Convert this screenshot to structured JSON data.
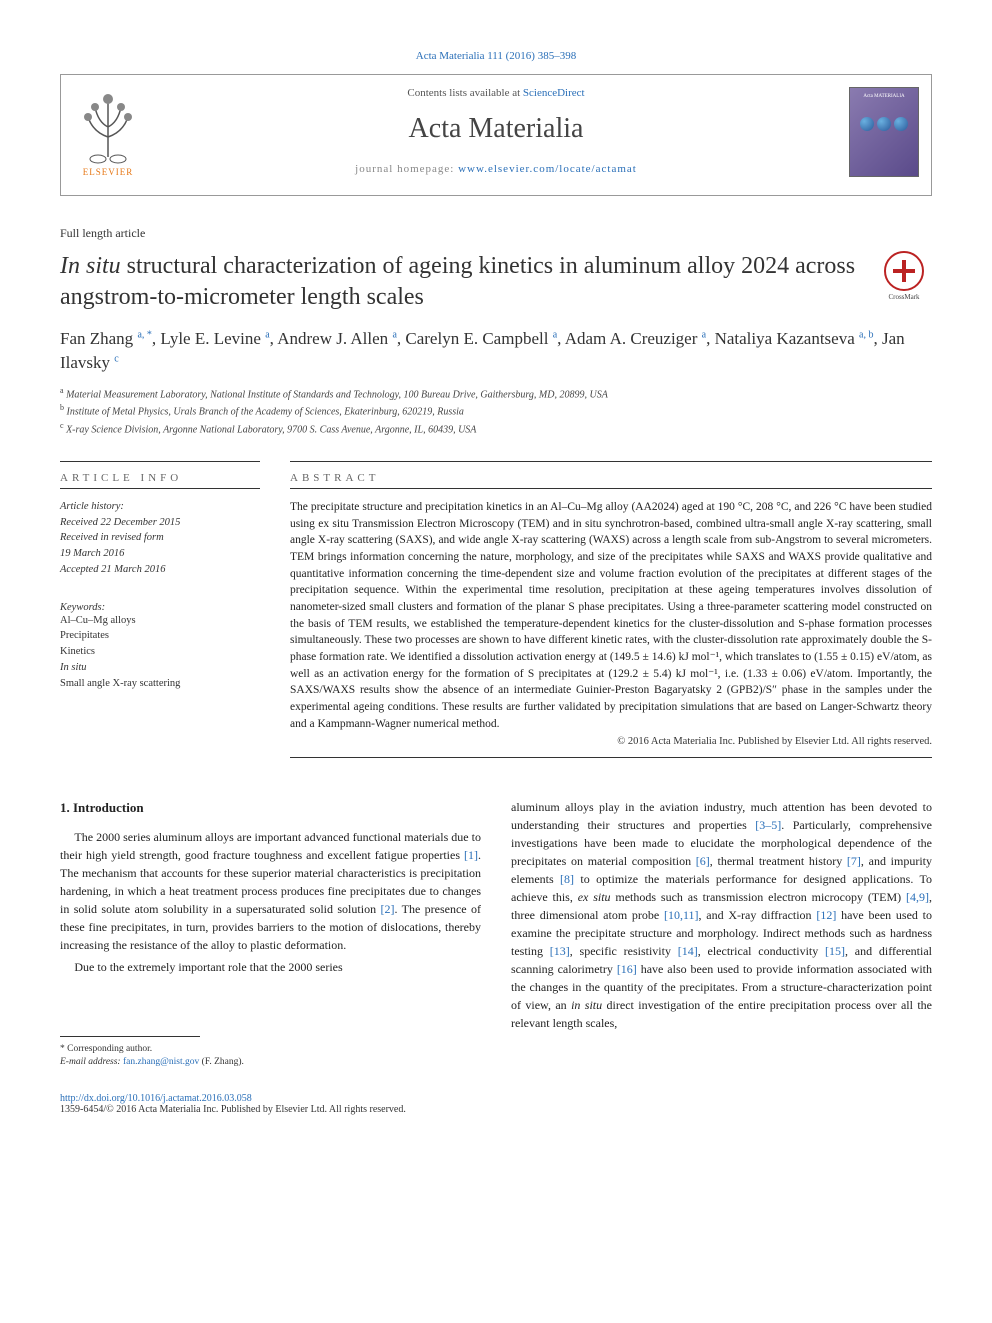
{
  "citation": "Acta Materialia 111 (2016) 385–398",
  "header": {
    "contents_prefix": "Contents lists available at ",
    "contents_link": "ScienceDirect",
    "journal_name": "Acta Materialia",
    "homepage_prefix": "journal homepage: ",
    "homepage_url": "www.elsevier.com/locate/actamat",
    "elsevier_label": "ELSEVIER",
    "cover_title": "Acta MATERIALIA"
  },
  "article_type": "Full length article",
  "title_prefix_italic": "In situ",
  "title_rest": " structural characterization of ageing kinetics in aluminum alloy 2024 across angstrom-to-micrometer length scales",
  "crossmark_label": "CrossMark",
  "authors_html": "Fan Zhang <sup>a, *</sup>, Lyle E. Levine <sup>a</sup>, Andrew J. Allen <sup>a</sup>, Carelyn E. Campbell <sup>a</sup>, Adam A. Creuziger <sup>a</sup>, Nataliya Kazantseva <sup>a, b</sup>, Jan Ilavsky <sup>c</sup>",
  "affiliations": [
    {
      "sup": "a",
      "text": "Material Measurement Laboratory, National Institute of Standards and Technology, 100 Bureau Drive, Gaithersburg, MD, 20899, USA"
    },
    {
      "sup": "b",
      "text": "Institute of Metal Physics, Urals Branch of the Academy of Sciences, Ekaterinburg, 620219, Russia"
    },
    {
      "sup": "c",
      "text": "X-ray Science Division, Argonne National Laboratory, 9700 S. Cass Avenue, Argonne, IL, 60439, USA"
    }
  ],
  "info": {
    "section_label": "ARTICLE INFO",
    "history_label": "Article history:",
    "history": [
      "Received 22 December 2015",
      "Received in revised form",
      "19 March 2016",
      "Accepted 21 March 2016"
    ],
    "keywords_label": "Keywords:",
    "keywords": [
      "Al–Cu–Mg alloys",
      "Precipitates",
      "Kinetics",
      "In situ",
      "Small angle X-ray scattering"
    ]
  },
  "abstract": {
    "section_label": "ABSTRACT",
    "text": "The precipitate structure and precipitation kinetics in an Al–Cu–Mg alloy (AA2024) aged at 190 °C, 208 °C, and 226 °C have been studied using ex situ Transmission Electron Microscopy (TEM) and in situ synchrotron-based, combined ultra-small angle X-ray scattering, small angle X-ray scattering (SAXS), and wide angle X-ray scattering (WAXS) across a length scale from sub-Angstrom to several micrometers. TEM brings information concerning the nature, morphology, and size of the precipitates while SAXS and WAXS provide qualitative and quantitative information concerning the time-dependent size and volume fraction evolution of the precipitates at different stages of the precipitation sequence. Within the experimental time resolution, precipitation at these ageing temperatures involves dissolution of nanometer-sized small clusters and formation of the planar S phase precipitates. Using a three-parameter scattering model constructed on the basis of TEM results, we established the temperature-dependent kinetics for the cluster-dissolution and S-phase formation processes simultaneously. These two processes are shown to have different kinetic rates, with the cluster-dissolution rate approximately double the S-phase formation rate. We identified a dissolution activation energy at (149.5 ± 14.6) kJ mol⁻¹, which translates to (1.55 ± 0.15) eV/atom, as well as an activation energy for the formation of S precipitates at (129.2 ± 5.4) kJ mol⁻¹, i.e. (1.33 ± 0.06) eV/atom. Importantly, the SAXS/WAXS results show the absence of an intermediate Guinier-Preston Bagaryatsky 2 (GPB2)/S″ phase in the samples under the experimental ageing conditions. These results are further validated by precipitation simulations that are based on Langer-Schwartz theory and a Kampmann-Wagner numerical method.",
    "copyright": "© 2016 Acta Materialia Inc. Published by Elsevier Ltd. All rights reserved."
  },
  "body": {
    "section_heading": "1. Introduction",
    "col1_p1": "The 2000 series aluminum alloys are important advanced functional materials due to their high yield strength, good fracture toughness and excellent fatigue properties [1]. The mechanism that accounts for these superior material characteristics is precipitation hardening, in which a heat treatment process produces fine precipitates due to changes in solid solute atom solubility in a supersaturated solid solution [2]. The presence of these fine precipitates, in turn, provides barriers to the motion of dislocations, thereby increasing the resistance of the alloy to plastic deformation.",
    "col1_p2": "Due to the extremely important role that the 2000 series",
    "col2_p1": "aluminum alloys play in the aviation industry, much attention has been devoted to understanding their structures and properties [3–5]. Particularly, comprehensive investigations have been made to elucidate the morphological dependence of the precipitates on material composition [6], thermal treatment history [7], and impurity elements [8] to optimize the materials performance for designed applications. To achieve this, ex situ methods such as transmission electron microcopy (TEM) [4,9], three dimensional atom probe [10,11], and X-ray diffraction [12] have been used to examine the precipitate structure and morphology. Indirect methods such as hardness testing [13], specific resistivity [14], electrical conductivity [15], and differential scanning calorimetry [16] have also been used to provide information associated with the changes in the quantity of the precipitates. From a structure-characterization point of view, an in situ direct investigation of the entire precipitation process over all the relevant length scales,"
  },
  "footnote": {
    "corresponding": "* Corresponding author.",
    "email_label": "E-mail address: ",
    "email": "fan.zhang@nist.gov",
    "email_suffix": " (F. Zhang)."
  },
  "footer": {
    "doi": "http://dx.doi.org/10.1016/j.actamat.2016.03.058",
    "issn_line": "1359-6454/© 2016 Acta Materialia Inc. Published by Elsevier Ltd. All rights reserved."
  },
  "colors": {
    "link": "#2a6fb8",
    "elsevier_orange": "#e67817",
    "text": "#222222",
    "border": "#999999"
  },
  "refs": {
    "r1": "[1]",
    "r2": "[2]",
    "r35": "[3–5]",
    "r6": "[6]",
    "r7": "[7]",
    "r8": "[8]",
    "r49": "[4,9]",
    "r1011": "[10,11]",
    "r12": "[12]",
    "r13": "[13]",
    "r14": "[14]",
    "r15": "[15]",
    "r16": "[16]"
  }
}
